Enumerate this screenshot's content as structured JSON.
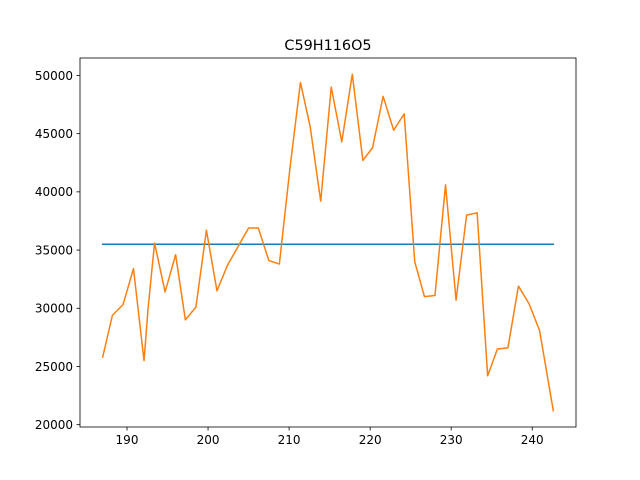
{
  "chart_data": {
    "type": "line",
    "title": "C59H116O5",
    "xlabel": "",
    "ylabel": "",
    "xlim": [
      184.2,
      245.4
    ],
    "ylim": [
      19800,
      51500
    ],
    "xticks": [
      190,
      200,
      210,
      220,
      230,
      240
    ],
    "yticks": [
      20000,
      25000,
      30000,
      35000,
      40000,
      45000,
      50000
    ],
    "grid": false,
    "series": [
      {
        "color": "#1f77b4",
        "x": [
          187.0,
          242.6
        ],
        "y": [
          35500,
          35500
        ]
      },
      {
        "color": "#ff7f0e",
        "x": [
          187.0,
          188.2,
          189.5,
          190.8,
          192.1,
          192.6,
          193.4,
          194.7,
          196.0,
          197.2,
          198.5,
          199.8,
          201.1,
          202.4,
          203.7,
          205.0,
          206.2,
          207.5,
          208.8,
          210.1,
          211.4,
          212.6,
          213.9,
          215.2,
          216.5,
          217.8,
          219.1,
          220.3,
          221.6,
          222.9,
          224.2,
          225.5,
          226.7,
          228.0,
          229.3,
          230.6,
          231.9,
          233.2,
          234.5,
          235.7,
          237.0,
          238.3,
          239.6,
          240.9,
          242.6
        ],
        "y": [
          25800,
          29400,
          30300,
          33400,
          25500,
          30000,
          35600,
          31400,
          34600,
          29000,
          30100,
          36700,
          31500,
          33700,
          35300,
          36900,
          36900,
          34100,
          33800,
          42000,
          49400,
          45600,
          39200,
          49000,
          44300,
          50100,
          42700,
          43800,
          48200,
          45300,
          46700,
          34000,
          31000,
          31100,
          40600,
          30700,
          38000,
          38200,
          24200,
          26500,
          26600,
          31900,
          30400,
          28100,
          21200
        ]
      }
    ]
  }
}
